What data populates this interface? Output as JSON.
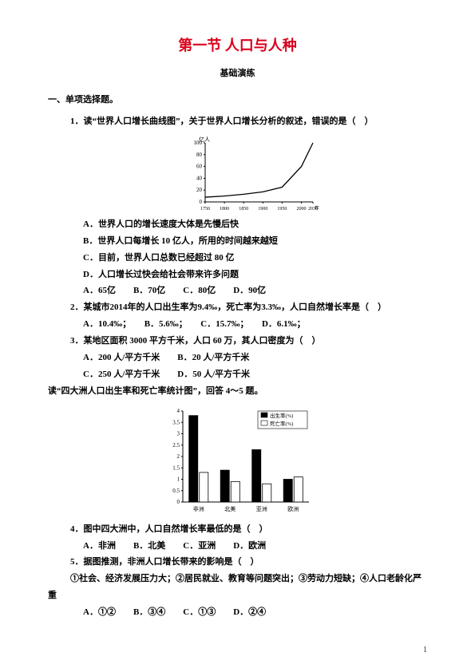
{
  "title": "第一节 人口与人种",
  "subtitle": "基础演练",
  "section1": "一、单项选择题。",
  "q1": "1．读“世界人口增长曲线图”，关于世界人口增长分析的叙述，错误的是（　）",
  "q1a": "A．世界人口的增长速度大体是先慢后快",
  "q1b": "B．世界人口每增长 10 亿人，所用的时间越来越短",
  "q1c": "C．目前，世界人口总数已经超过 80 亿",
  "q1d": "D．人口增长过快会给社会带来许多问题",
  "q1opts": "A．65亿　　B．70亿　　C．80亿　　D．90亿",
  "q2": "2．某城市2014年的人口出生率为9.4‰，死亡率为3.3‰，人口自然增长率是（　）",
  "q2opts": "A．10.4‰；　　B．5.6‰；　　C．15.7‰；　　D．6.1‰；",
  "q3": "3．某地区面积 3000 平方千米，人口 60 万，其人口密度为（　）",
  "q3a": "A．200 人/平方千米　　B．20 人/平方千米",
  "q3b": "C．250 人/平方千米　　D．50 人/平方千米",
  "instr45": "读“四大洲人口出生率和死亡率统计图”，回答 4～5 题。",
  "q4": "4．图中四大洲中，人口自然增长率最低的是（　）",
  "q4opts": "A．非洲　　B．北美　　C．亚洲　　D．欧洲",
  "q5": "5．据图推测，非洲人口增长带来的影响是（　）",
  "q5stem": "①社会、经济发展压力大；②居民就业、教育等问题突出；③劳动力短缺；④人口老龄化严重",
  "q5opts": "A．①②　　B．③④　　C．①③　　D．②④",
  "pagenum": "1",
  "chart1": {
    "type": "line",
    "x": [
      1750,
      1800,
      1850,
      1900,
      1950,
      2000,
      2030
    ],
    "y": [
      8,
      10,
      13,
      17,
      25,
      60,
      100
    ],
    "top_label": "亿人",
    "xlabel_suffix": "年份",
    "ytick_step": 20,
    "ylim": [
      0,
      100
    ],
    "line_color": "#000000",
    "border_color": "#000000",
    "bg": "#ffffff",
    "fontsize": 7
  },
  "chart2": {
    "type": "bar-grouped",
    "categories": [
      "非洲",
      "北美",
      "亚洲",
      "欧洲"
    ],
    "series": [
      {
        "name": "出生率(%)",
        "color": "#000000",
        "values": [
          3.8,
          1.4,
          2.3,
          1.0
        ]
      },
      {
        "name": "死亡率(%)",
        "color": "#ffffff",
        "values": [
          1.3,
          0.9,
          0.8,
          1.1
        ]
      }
    ],
    "ylim": [
      0,
      4
    ],
    "ytick_step": 0.5,
    "bar_border": "#000000",
    "axis_color": "#000000",
    "fontsize": 7,
    "legend_pos": "top-right"
  }
}
